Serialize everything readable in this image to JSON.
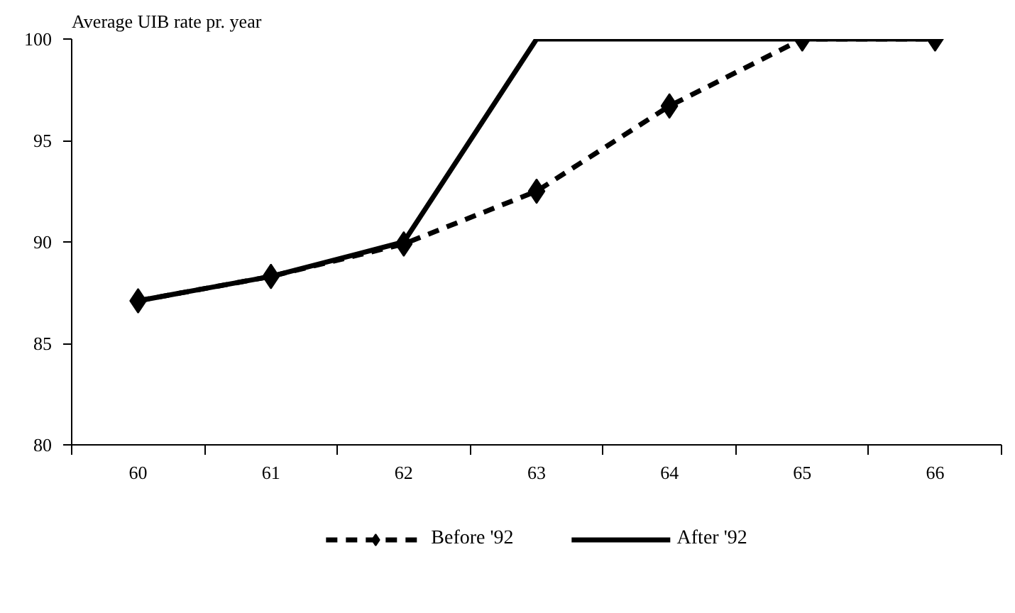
{
  "chart_data": {
    "type": "line",
    "ylabel": "Average UIB rate pr. year",
    "categories": [
      "60",
      "61",
      "62",
      "63",
      "64",
      "65",
      "66"
    ],
    "series": [
      {
        "name": "Before '92",
        "color": "#000000",
        "values": [
          87.1,
          88.3,
          89.9,
          92.5,
          96.7,
          100,
          100
        ],
        "marker": "diamond",
        "line_style": "dashed"
      },
      {
        "name": "After '92",
        "color": "#000000",
        "values": [
          87.1,
          88.3,
          90,
          100,
          100,
          100,
          100
        ],
        "marker": "none",
        "line_style": "solid"
      }
    ],
    "ylim": [
      80,
      100
    ],
    "yticks": [
      80,
      85,
      90,
      95,
      100
    ],
    "grid": false,
    "legend": "bottom"
  }
}
